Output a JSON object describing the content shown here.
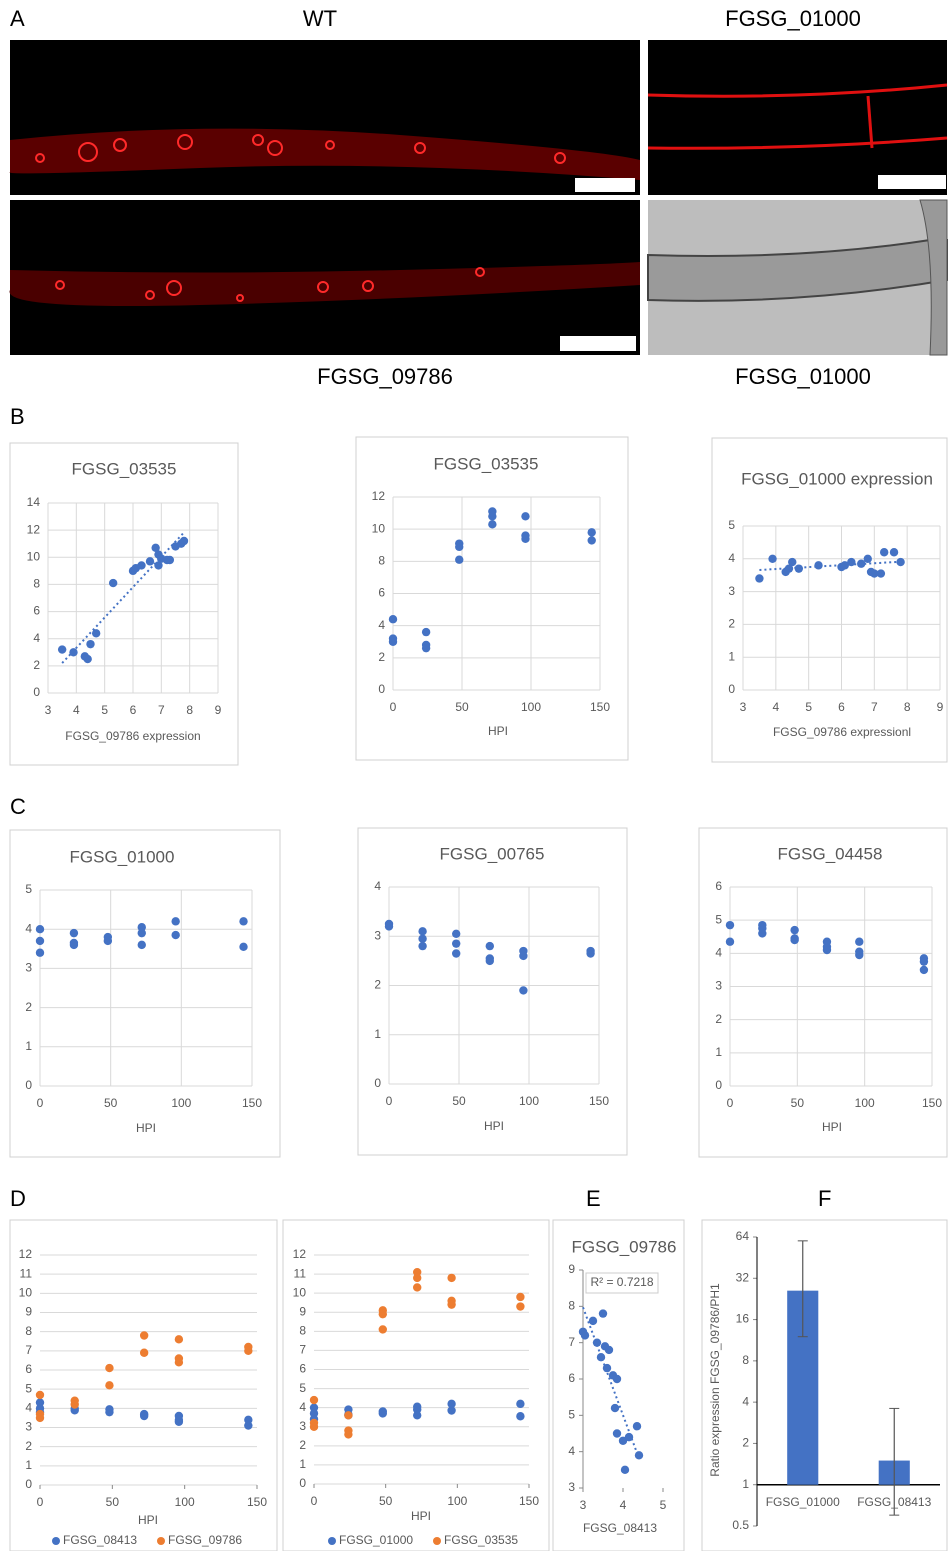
{
  "panel_labels": [
    "A",
    "B",
    "C",
    "D",
    "E",
    "F"
  ],
  "image_captions": [
    "WT",
    "FGSG_01000",
    "FGSG_09786",
    "FGSG_01000"
  ],
  "chart_data": [
    {
      "type": "scatter",
      "title": "FGSG_03535",
      "x_label": "FGSG_09786 expression",
      "color": "#4472c4",
      "grid": "both",
      "trendline": true,
      "x": [
        3.5,
        3.9,
        4.3,
        4.4,
        4.5,
        4.7,
        5.3,
        6.0,
        6.1,
        6.3,
        6.6,
        6.8,
        6.9,
        6.9,
        7.0,
        7.2,
        7.3,
        7.5,
        7.8,
        7.7
      ],
      "values": [
        3.2,
        3.0,
        2.7,
        2.5,
        3.6,
        4.4,
        8.1,
        9.0,
        9.2,
        9.4,
        9.7,
        10.7,
        10.2,
        9.4,
        9.9,
        9.8,
        9.8,
        10.8,
        11.2,
        11.0
      ],
      "xlim": [
        3,
        9
      ],
      "xticks": [
        3,
        4,
        5,
        6,
        7,
        8,
        9
      ],
      "ylim": [
        0,
        14
      ],
      "yticks": [
        0,
        2,
        4,
        6,
        8,
        10,
        12,
        14
      ]
    },
    {
      "type": "scatter",
      "title": "FGSG_03535",
      "x_label": "HPI",
      "color": "#4472c4",
      "grid": "both",
      "x": [
        0,
        0,
        0,
        24,
        24,
        24,
        48,
        48,
        48,
        72,
        72,
        72,
        96,
        96,
        96,
        144,
        144
      ],
      "values": [
        4.4,
        3.2,
        3.0,
        3.6,
        2.8,
        2.6,
        9.1,
        8.9,
        8.1,
        11.1,
        10.8,
        10.3,
        10.8,
        9.6,
        9.4,
        9.8,
        9.3
      ],
      "xlim": [
        0,
        150
      ],
      "xticks": [
        0,
        50,
        100,
        150
      ],
      "ylim": [
        0,
        12
      ],
      "yticks": [
        0,
        2,
        4,
        6,
        8,
        10,
        12
      ]
    },
    {
      "type": "scatter",
      "title": "FGSG_01000 expression",
      "x_label": "FGSG_09786 expressionl",
      "color": "#4472c4",
      "grid": "both",
      "trendline": true,
      "x": [
        3.5,
        3.9,
        4.3,
        4.4,
        4.5,
        4.7,
        5.3,
        6.0,
        6.1,
        6.3,
        6.6,
        6.8,
        6.9,
        7.0,
        7.2,
        7.3,
        7.6,
        7.8
      ],
      "values": [
        3.4,
        4.0,
        3.6,
        3.7,
        3.9,
        3.7,
        3.8,
        3.75,
        3.8,
        3.9,
        3.85,
        4.0,
        3.6,
        3.55,
        3.55,
        4.2,
        4.2,
        3.9
      ],
      "xlim": [
        3,
        9
      ],
      "xticks": [
        3,
        4,
        5,
        6,
        7,
        8,
        9
      ],
      "ylim": [
        0,
        5
      ],
      "yticks": [
        0,
        1,
        2,
        3,
        4,
        5
      ]
    },
    {
      "type": "scatter",
      "title": "FGSG_01000",
      "x_label": "HPI",
      "color": "#4472c4",
      "grid": "both",
      "x": [
        0,
        0,
        0,
        24,
        24,
        24,
        48,
        48,
        72,
        72,
        72,
        96,
        96,
        144,
        144
      ],
      "values": [
        4.0,
        3.7,
        3.4,
        3.9,
        3.65,
        3.6,
        3.8,
        3.7,
        4.05,
        3.9,
        3.6,
        4.2,
        3.85,
        4.2,
        3.55
      ],
      "xlim": [
        0,
        150
      ],
      "xticks": [
        0,
        50,
        100,
        150
      ],
      "ylim": [
        0,
        5
      ],
      "yticks": [
        0,
        1,
        2,
        3,
        4,
        5
      ]
    },
    {
      "type": "scatter",
      "title": "FGSG_00765",
      "x_label": "HPI",
      "color": "#4472c4",
      "grid": "both",
      "x": [
        0,
        0,
        24,
        24,
        24,
        48,
        48,
        48,
        72,
        72,
        72,
        96,
        96,
        96,
        144,
        144
      ],
      "values": [
        3.25,
        3.2,
        3.1,
        2.95,
        2.8,
        3.05,
        2.85,
        2.65,
        2.8,
        2.55,
        2.5,
        2.7,
        2.6,
        1.9,
        2.7,
        2.65
      ],
      "xlim": [
        0,
        150
      ],
      "xticks": [
        0,
        50,
        100,
        150
      ],
      "ylim": [
        0,
        4
      ],
      "yticks": [
        0,
        1,
        2,
        3,
        4
      ]
    },
    {
      "type": "scatter",
      "title": "FGSG_04458",
      "x_label": "HPI",
      "color": "#4472c4",
      "grid": "both",
      "x": [
        0,
        0,
        24,
        24,
        24,
        48,
        48,
        48,
        72,
        72,
        72,
        96,
        96,
        96,
        144,
        144,
        144
      ],
      "values": [
        4.85,
        4.35,
        4.85,
        4.75,
        4.6,
        4.7,
        4.45,
        4.4,
        4.35,
        4.2,
        4.1,
        4.35,
        4.05,
        3.95,
        3.85,
        3.75,
        3.5
      ],
      "xlim": [
        0,
        150
      ],
      "xticks": [
        0,
        50,
        100,
        150
      ],
      "ylim": [
        0,
        6
      ],
      "yticks": [
        0,
        1,
        2,
        3,
        4,
        5,
        6
      ]
    },
    {
      "type": "scatter",
      "x_label": "HPI",
      "grid": "y",
      "series": [
        {
          "name": "FGSG_08413",
          "color": "#4472c4",
          "x": [
            0,
            0,
            0,
            24,
            24,
            48,
            48,
            72,
            72,
            96,
            96,
            96,
            144,
            144
          ],
          "values": [
            4.3,
            4.0,
            3.8,
            4.0,
            3.9,
            3.95,
            3.8,
            3.7,
            3.6,
            3.6,
            3.4,
            3.3,
            3.4,
            3.1
          ]
        },
        {
          "name": "FGSG_09786",
          "color": "#ed7d31",
          "x": [
            0,
            0,
            0,
            24,
            24,
            48,
            48,
            72,
            72,
            96,
            96,
            96,
            144,
            144
          ],
          "values": [
            4.7,
            3.7,
            3.5,
            4.4,
            4.2,
            6.1,
            5.2,
            7.8,
            6.9,
            7.6,
            6.6,
            6.4,
            7.2,
            7.0
          ]
        }
      ],
      "xlim": [
        0,
        150
      ],
      "xticks": [
        0,
        50,
        100,
        150
      ],
      "ylim": [
        0,
        12
      ],
      "yticks": [
        0,
        1,
        2,
        3,
        4,
        5,
        6,
        7,
        8,
        9,
        10,
        11,
        12
      ]
    },
    {
      "type": "scatter",
      "x_label": "HPI",
      "grid": "y",
      "series": [
        {
          "name": "FGSG_01000",
          "color": "#4472c4",
          "x": [
            0,
            0,
            0,
            24,
            24,
            24,
            48,
            48,
            72,
            72,
            72,
            96,
            96,
            144,
            144
          ],
          "values": [
            4.0,
            3.7,
            3.4,
            3.9,
            3.65,
            3.6,
            3.8,
            3.7,
            4.05,
            3.9,
            3.6,
            4.2,
            3.85,
            4.2,
            3.55
          ]
        },
        {
          "name": "FGSG_03535",
          "color": "#ed7d31",
          "x": [
            0,
            0,
            0,
            24,
            24,
            24,
            48,
            48,
            48,
            72,
            72,
            72,
            96,
            96,
            96,
            144,
            144
          ],
          "values": [
            4.4,
            3.2,
            3.0,
            3.6,
            2.8,
            2.6,
            9.1,
            8.9,
            8.1,
            11.1,
            10.8,
            10.3,
            10.8,
            9.6,
            9.4,
            9.8,
            9.3
          ]
        }
      ],
      "xlim": [
        0,
        150
      ],
      "xticks": [
        0,
        50,
        100,
        150
      ],
      "ylim": [
        0,
        12
      ],
      "yticks": [
        0,
        1,
        2,
        3,
        4,
        5,
        6,
        7,
        8,
        9,
        10,
        11,
        12
      ]
    },
    {
      "type": "scatter",
      "title": "FGSG_09786",
      "x_label": "FGSG_08413",
      "color": "#4472c4",
      "grid": "none",
      "trendline": true,
      "annotation": "R² = 0.7218",
      "x": [
        3.0,
        3.05,
        3.25,
        3.35,
        3.45,
        3.5,
        3.55,
        3.6,
        3.65,
        3.75,
        3.85,
        3.8,
        3.85,
        4.0,
        4.05,
        4.15,
        4.35,
        4.4
      ],
      "values": [
        7.3,
        7.2,
        7.6,
        7.0,
        6.6,
        7.8,
        6.9,
        6.3,
        6.8,
        6.1,
        6.0,
        5.2,
        4.5,
        4.3,
        3.5,
        4.4,
        4.7,
        3.9
      ],
      "xlim": [
        3,
        5
      ],
      "xticks": [
        3,
        4,
        5
      ],
      "ylim": [
        3,
        9
      ],
      "yticks": [
        3,
        4,
        5,
        6,
        7,
        8,
        9
      ]
    },
    {
      "type": "bar",
      "y_label": "Ratio expression FGSG_09786/PH1",
      "color": "#4472c4",
      "log_scale": true,
      "grid": "none",
      "categories": [
        "FGSG_01000",
        "FGSG_08413"
      ],
      "values": [
        26,
        1.5
      ],
      "errors_lower": [
        14,
        0.9
      ],
      "errors_upper": [
        34,
        2.1
      ],
      "ylim": [
        0.5,
        64
      ],
      "yticks": [
        0.5,
        1,
        2,
        4,
        8,
        16,
        32,
        64
      ]
    }
  ]
}
